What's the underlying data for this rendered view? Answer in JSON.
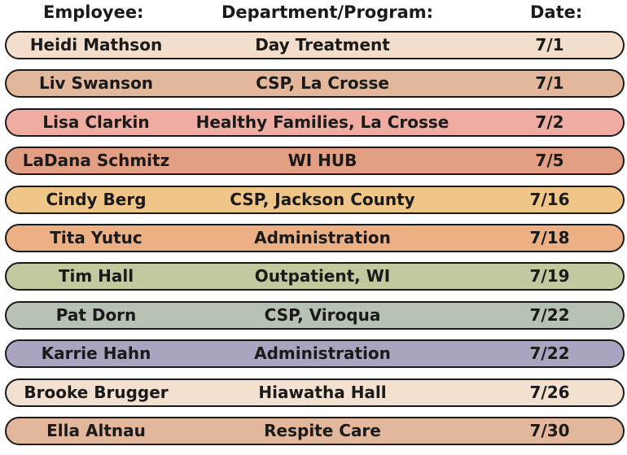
{
  "headers": {
    "employee": "Employee:",
    "department": "Department/Program:",
    "date": "Date:"
  },
  "rows": [
    {
      "name": "Heidi Mathson",
      "department": "Day Treatment",
      "date": "7/1",
      "color": "#f2decb"
    },
    {
      "name": "Liv Swanson",
      "department": "CSP, La Crosse",
      "date": "7/1",
      "color": "#e3b79b"
    },
    {
      "name": "Lisa Clarkin",
      "department": "Healthy Families, La Crosse",
      "date": "7/2",
      "color": "#f0aca1"
    },
    {
      "name": "LaDana Schmitz",
      "department": "WI HUB",
      "date": "7/5",
      "color": "#e39f83"
    },
    {
      "name": "Cindy Berg",
      "department": "CSP, Jackson County",
      "date": "7/16",
      "color": "#f0c688"
    },
    {
      "name": "Tita Yutuc",
      "department": "Administration",
      "date": "7/18",
      "color": "#ecb084"
    },
    {
      "name": "Tim Hall",
      "department": "Outpatient, WI",
      "date": "7/19",
      "color": "#c3c99f"
    },
    {
      "name": "Pat Dorn",
      "department": "CSP, Viroqua",
      "date": "7/22",
      "color": "#b7c2b4"
    },
    {
      "name": "Karrie Hahn",
      "department": "Administration",
      "date": "7/22",
      "color": "#aba3c0"
    },
    {
      "name": "Brooke Brugger",
      "department": "Hiawatha Hall",
      "date": "7/26",
      "color": "#f3e0ce"
    },
    {
      "name": "Ella Altnau",
      "department": "Respite Care",
      "date": "7/30",
      "color": "#e2b79b"
    }
  ]
}
